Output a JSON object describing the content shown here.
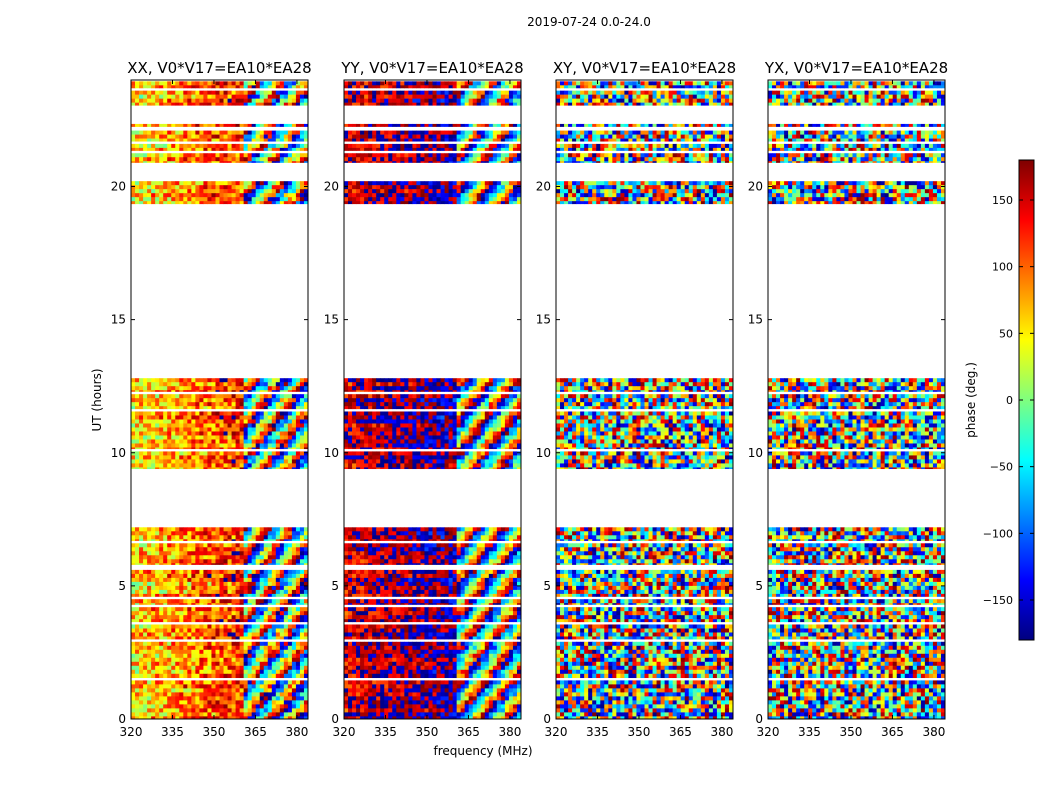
{
  "chart_data": {
    "type": "heatmap",
    "suptitle": "2019-07-24 0.0-24.0",
    "xlabel": "frequency (MHz)",
    "ylabel": "UT (hours)",
    "xlim": [
      320,
      384
    ],
    "ylim": [
      0,
      24
    ],
    "xticks": [
      "320",
      "335",
      "350",
      "365",
      "380"
    ],
    "yticks": [
      "0",
      "5",
      "10",
      "15",
      "20"
    ],
    "colorbar": {
      "label": "phase (deg.)",
      "range": [
        -180,
        180
      ],
      "ticks": [
        "−150",
        "−100",
        "−50",
        "0",
        "50",
        "100",
        "150"
      ],
      "colormap": "jet",
      "colors": [
        "#00007f",
        "#0000ff",
        "#007fff",
        "#00ffff",
        "#7fff7f",
        "#ffff00",
        "#ff7f00",
        "#ff0000",
        "#7f0000"
      ]
    },
    "data_blocks_hours": [
      [
        0.0,
        1.45
      ],
      [
        1.55,
        2.9
      ],
      [
        3.0,
        3.55
      ],
      [
        3.65,
        4.2
      ],
      [
        4.3,
        4.5
      ],
      [
        4.6,
        5.6
      ],
      [
        5.8,
        6.6
      ],
      [
        6.7,
        7.2
      ],
      [
        9.4,
        10.05
      ],
      [
        10.15,
        11.55
      ],
      [
        11.65,
        12.2
      ],
      [
        12.3,
        12.8
      ],
      [
        19.35,
        20.2
      ],
      [
        20.9,
        21.25
      ],
      [
        21.35,
        21.6
      ],
      [
        21.7,
        22.1
      ],
      [
        22.25,
        22.35
      ],
      [
        23.05,
        23.6
      ],
      [
        23.7,
        23.95
      ]
    ],
    "panels": [
      {
        "title": "XX, V0*V17=EA10*EA28",
        "base_phase_deg": 50,
        "slope_deg_per_MHz": 1.8,
        "noise_deg": 60
      },
      {
        "title": "YY, V0*V17=EA10*EA28",
        "base_phase_deg": 150,
        "slope_deg_per_MHz": 1.0,
        "noise_deg": 50
      },
      {
        "title": "XY, V0*V17=EA10*EA28",
        "base_phase_deg": 0,
        "slope_deg_per_MHz": 0,
        "noise_deg": 180
      },
      {
        "title": "YX, V0*V17=EA10*EA28",
        "base_phase_deg": 0,
        "slope_deg_per_MHz": 0,
        "noise_deg": 180
      }
    ]
  }
}
